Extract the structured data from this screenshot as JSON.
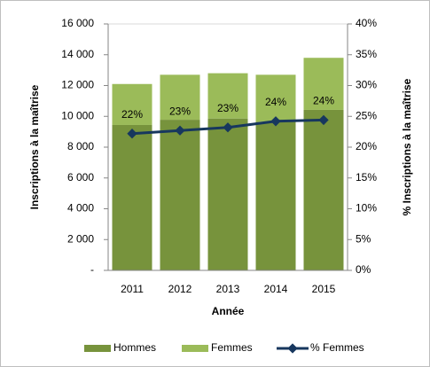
{
  "chart_data": {
    "type": "bar",
    "categories": [
      "2011",
      "2012",
      "2013",
      "2014",
      "2015"
    ],
    "series": [
      {
        "name": "Hommes",
        "color": "#77933c",
        "values": [
          9440,
          9780,
          9860,
          9650,
          10420
        ]
      },
      {
        "name": "Femmes",
        "color": "#9bbb59",
        "values": [
          2660,
          2920,
          2940,
          3050,
          3380
        ]
      },
      {
        "name": "% Femmes",
        "color": "#17375e",
        "axis": "y2",
        "type": "line",
        "values": [
          22.2,
          22.7,
          23.2,
          24.2,
          24.4
        ],
        "value_labels": [
          "22%",
          "23%",
          "23%",
          "24%",
          "24%"
        ]
      }
    ],
    "xlabel": "Année",
    "ylabel": "Inscriptions à la maîtrise",
    "y2label": "% Inscriptions à la maîtrise",
    "ylim": [
      0,
      16000
    ],
    "yticks": [
      {
        "value": 0,
        "label": "-"
      },
      {
        "value": 2000,
        "label": "2 000"
      },
      {
        "value": 4000,
        "label": "4 000"
      },
      {
        "value": 6000,
        "label": "6 000"
      },
      {
        "value": 8000,
        "label": "8 000"
      },
      {
        "value": 10000,
        "label": "10 000"
      },
      {
        "value": 12000,
        "label": "12 000"
      },
      {
        "value": 14000,
        "label": "14 000"
      },
      {
        "value": 16000,
        "label": "16 000"
      }
    ],
    "y2lim": [
      0,
      40
    ],
    "y2ticks": [
      {
        "value": 0,
        "label": "0%"
      },
      {
        "value": 5,
        "label": "5%"
      },
      {
        "value": 10,
        "label": "10%"
      },
      {
        "value": 15,
        "label": "15%"
      },
      {
        "value": 20,
        "label": "20%"
      },
      {
        "value": 25,
        "label": "25%"
      },
      {
        "value": 30,
        "label": "30%"
      },
      {
        "value": 35,
        "label": "35%"
      },
      {
        "value": 40,
        "label": "40%"
      }
    ],
    "legend": "bottom"
  }
}
